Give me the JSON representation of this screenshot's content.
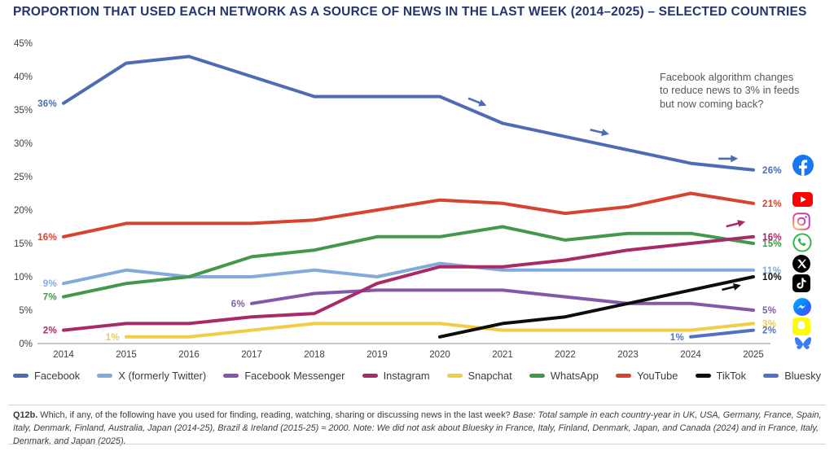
{
  "title": "PROPORTION THAT USED EACH NETWORK AS A SOURCE OF NEWS IN THE LAST WEEK (2014–2025) – SELECTED COUNTRIES",
  "annotation": "Facebook algorithm changes to reduce news to 3% in feeds but now coming back?",
  "chart_data": {
    "type": "line",
    "title": "PROPORTION THAT USED EACH NETWORK AS A SOURCE OF NEWS IN THE LAST WEEK (2014–2025) – SELECTED COUNTRIES",
    "x": [
      2014,
      2015,
      2016,
      2017,
      2018,
      2019,
      2020,
      2021,
      2022,
      2023,
      2024,
      2025
    ],
    "xlabel": "",
    "ylabel": "",
    "ylim": [
      0,
      45
    ],
    "yticks": [
      0,
      5,
      10,
      15,
      20,
      25,
      30,
      35,
      40,
      45
    ],
    "grid": false,
    "legend_position": "bottom",
    "series": [
      {
        "name": "Snapchat",
        "color": "#f1cd43",
        "values": [
          null,
          1,
          1,
          2,
          3,
          3,
          3,
          2,
          2,
          2,
          2,
          3
        ],
        "start_label": "1%",
        "end_label": "3%"
      },
      {
        "name": "Facebook Messenger",
        "color": "#8159a8",
        "values": [
          null,
          null,
          null,
          6,
          7.5,
          8,
          8,
          8,
          7,
          6,
          6,
          5
        ],
        "start_label": "6%",
        "end_label": "5%"
      },
      {
        "name": "X (formerly Twitter)",
        "color": "#83aadb",
        "values": [
          9,
          11,
          10,
          10,
          11,
          10,
          12,
          11,
          11,
          11,
          11,
          11
        ],
        "start_label": "9%",
        "end_label": "11%"
      },
      {
        "name": "WhatsApp",
        "color": "#43984e",
        "values": [
          7,
          9,
          10,
          13,
          14,
          16,
          16,
          17.5,
          15.5,
          16.5,
          16.5,
          15
        ],
        "start_label": "7%",
        "end_label": "15%"
      },
      {
        "name": "YouTube",
        "color": "#d64330",
        "values": [
          16,
          18,
          18,
          18,
          18.5,
          20,
          21.5,
          21,
          19.5,
          20.5,
          22.5,
          21
        ],
        "start_label": "16%",
        "end_label": "21%"
      },
      {
        "name": "Instagram",
        "color": "#a92b66",
        "values": [
          2,
          3,
          3,
          4,
          4.5,
          9,
          11.5,
          11.5,
          12.5,
          14,
          15,
          16
        ],
        "start_label": "2%",
        "end_label": "16%"
      },
      {
        "name": "Facebook",
        "color": "#4e6cb3",
        "values": [
          36,
          42,
          43,
          40,
          37,
          37,
          37,
          33,
          31,
          29,
          27,
          26
        ],
        "start_label": "36%",
        "end_label": "26%"
      },
      {
        "name": "TikTok",
        "color": "#0d0d0d",
        "values": [
          null,
          null,
          null,
          null,
          null,
          null,
          1,
          3,
          4,
          6,
          8,
          10
        ],
        "start_label": null,
        "end_label": "10%"
      },
      {
        "name": "Bluesky",
        "color": "#5173c1",
        "values": [
          null,
          null,
          null,
          null,
          null,
          null,
          null,
          null,
          null,
          null,
          1,
          2
        ],
        "start_label": "1%",
        "end_label": "2%"
      }
    ],
    "trend_arrows": [
      {
        "series": "Facebook",
        "year": 2020.6,
        "value": 36.2,
        "angle": 22
      },
      {
        "series": "Facebook",
        "year": 2022.55,
        "value": 31.7,
        "angle": 13
      },
      {
        "series": "Facebook",
        "year": 2024.6,
        "value": 27.7,
        "angle": 0
      },
      {
        "series": "Instagram",
        "year": 2024.72,
        "value": 17.9,
        "angle": -14
      },
      {
        "series": "TikTok",
        "year": 2024.65,
        "value": 8.4,
        "angle": -14
      }
    ]
  },
  "legend": {
    "items": [
      {
        "label": "Facebook",
        "color": "#4e6cb3"
      },
      {
        "label": "X (formerly Twitter)",
        "color": "#83aadb"
      },
      {
        "label": "Facebook Messenger",
        "color": "#8159a8"
      },
      {
        "label": "Instagram",
        "color": "#a92b66"
      },
      {
        "label": "Snapchat",
        "color": "#f1cd43"
      },
      {
        "label": "WhatsApp",
        "color": "#43984e"
      },
      {
        "label": "YouTube",
        "color": "#d64330"
      },
      {
        "label": "TikTok",
        "color": "#0d0d0d"
      },
      {
        "label": "Bluesky",
        "color": "#5173c1"
      }
    ]
  },
  "icons": [
    "facebook-icon",
    "youtube-icon",
    "instagram-icon",
    "whatsapp-icon",
    "x-icon",
    "tiktok-icon",
    "messenger-icon",
    "snapchat-icon",
    "bluesky-icon"
  ],
  "footnote": {
    "label": "Q12b.",
    "question": "Which, if any, of the following have you used for finding, reading, watching, sharing or discussing news in the last week?",
    "details": "Base: Total sample in each country-year in UK, USA, Germany, France, Spain, Italy, Denmark, Finland, Australia, Japan (2014-25), Brazil & Ireland (2015-25) ≈ 2000. Note: We did not ask about Bluesky in France, Italy, Finland, Denmark, Japan, and Canada (2024) and in France, Italy, Denmark, and Japan (2025)."
  }
}
